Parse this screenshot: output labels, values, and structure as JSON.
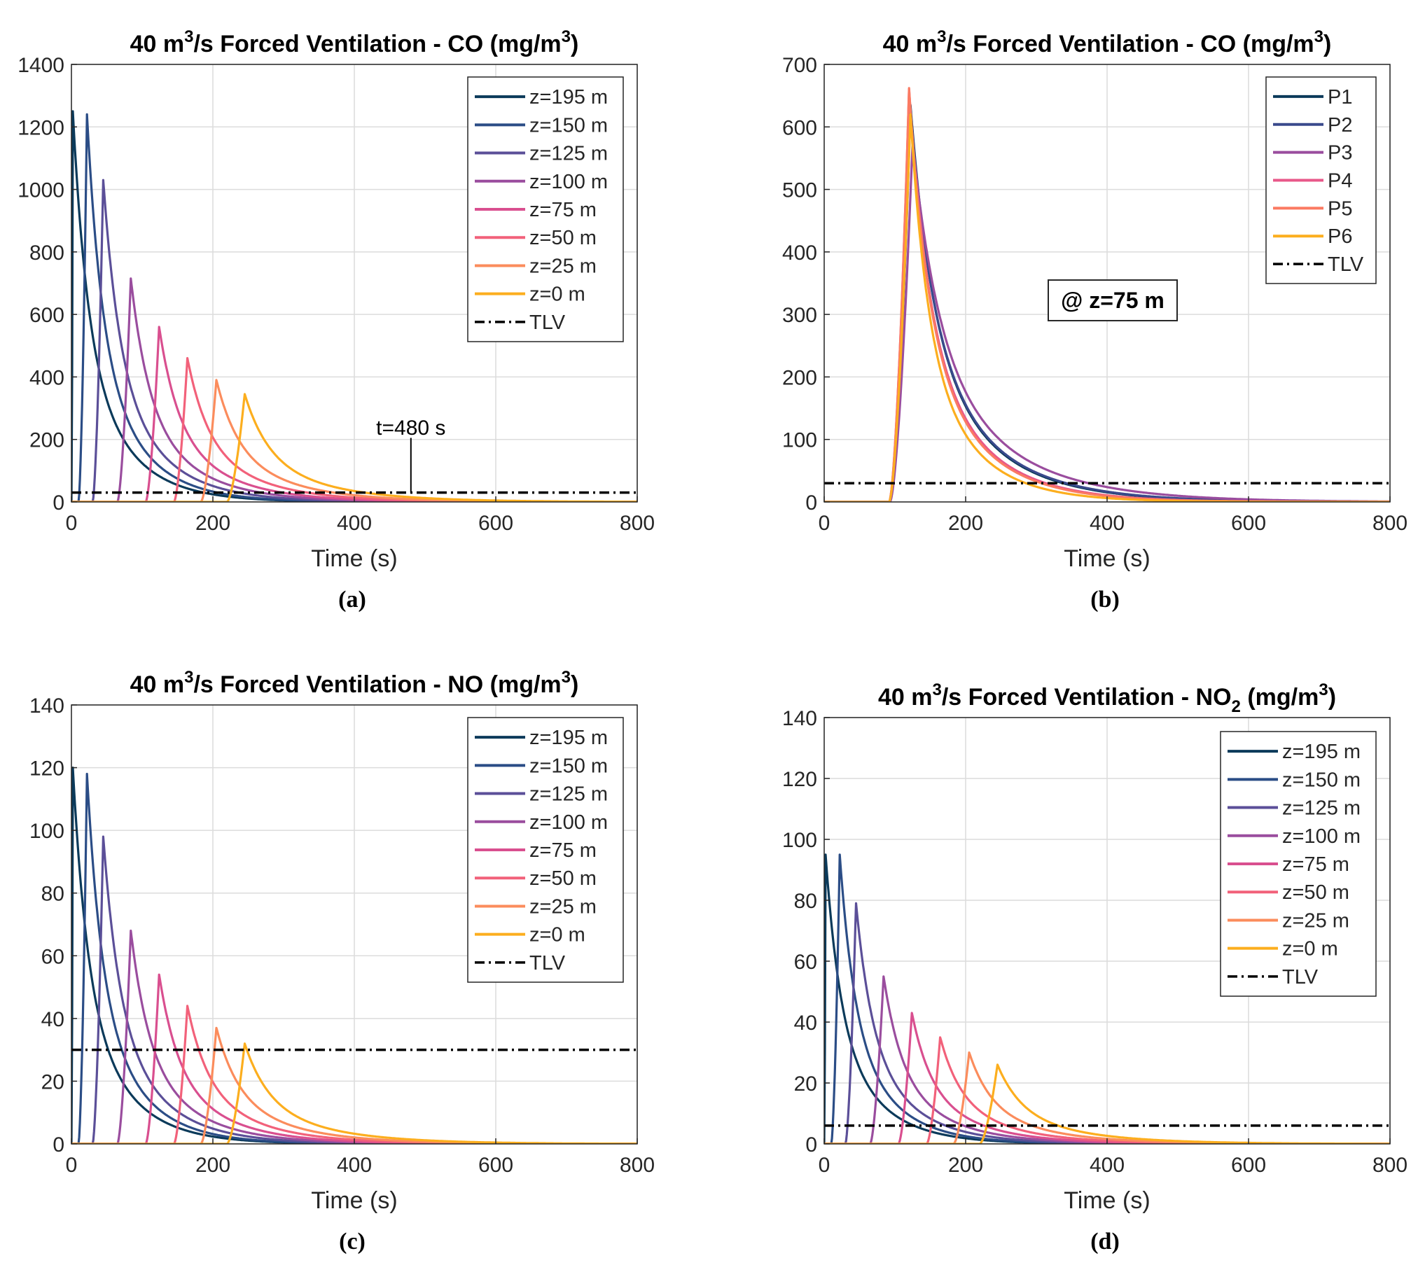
{
  "figure": {
    "panels": [
      "a",
      "b",
      "c",
      "d"
    ]
  },
  "colors": {
    "z195": "#0b3a5a",
    "z150": "#2b4d86",
    "z125": "#5b4f98",
    "z100": "#9a4d9e",
    "z75": "#d94f8f",
    "z50": "#f2617a",
    "z25": "#fb8c5c",
    "z0": "#fcae1e",
    "P1": "#0b3a5a",
    "P2": "#3a4a8c",
    "P3": "#9a4d9e",
    "P4": "#e8588a",
    "P5": "#fb7a62",
    "P6": "#fcae1e",
    "TLV": "#000000"
  },
  "chart_data": [
    {
      "id": "a",
      "type": "line",
      "caption": "(a)",
      "title": "40 m3/s Forced Ventilation - CO (mg/m3)",
      "title_parts": {
        "pre": "40 m",
        "sup1": "3",
        "mid": "/s Forced Ventilation - CO (mg/m",
        "sup2": "3",
        "post": ")"
      },
      "xlabel": "Time (s)",
      "ylabel": "",
      "xlim": [
        0,
        800
      ],
      "ylim": [
        0,
        1400
      ],
      "xticks": [
        0,
        200,
        400,
        600,
        800
      ],
      "yticks": [
        0,
        200,
        400,
        600,
        800,
        1000,
        1200,
        1400
      ],
      "grid": true,
      "legend_position": "top-right",
      "tlv": 30,
      "annotation": {
        "text": "t=480 s",
        "x": 480
      },
      "series": [
        {
          "name": "z=195 m",
          "key": "z195",
          "start": 0,
          "peak_t": 2,
          "peak": 1250,
          "tau": 45
        },
        {
          "name": "z=150 m",
          "key": "z150",
          "start": 10,
          "peak_t": 22,
          "peak": 1240,
          "tau": 45
        },
        {
          "name": "z=125 m",
          "key": "z125",
          "start": 30,
          "peak_t": 45,
          "peak": 1030,
          "tau": 50
        },
        {
          "name": "z=100 m",
          "key": "z100",
          "start": 65,
          "peak_t": 84,
          "peak": 715,
          "tau": 55
        },
        {
          "name": "z=75 m",
          "key": "z75",
          "start": 105,
          "peak_t": 124,
          "peak": 560,
          "tau": 58
        },
        {
          "name": "z=50 m",
          "key": "z50",
          "start": 145,
          "peak_t": 164,
          "peak": 460,
          "tau": 62
        },
        {
          "name": "z=25 m",
          "key": "z25",
          "start": 183,
          "peak_t": 205,
          "peak": 390,
          "tau": 66
        },
        {
          "name": "z=0 m",
          "key": "z0",
          "start": 220,
          "peak_t": 245,
          "peak": 345,
          "tau": 72
        },
        {
          "name": "TLV",
          "key": "TLV",
          "tlv": true
        }
      ]
    },
    {
      "id": "b",
      "type": "line",
      "caption": "(b)",
      "title": "40 m3/s Forced Ventilation - CO (mg/m3)",
      "title_parts": {
        "pre": "40 m",
        "sup1": "3",
        "mid": "/s Forced Ventilation - CO (mg/m",
        "sup2": "3",
        "post": ")"
      },
      "xlabel": "Time (s)",
      "ylabel": "",
      "xlim": [
        0,
        800
      ],
      "ylim": [
        0,
        700
      ],
      "xticks": [
        0,
        200,
        400,
        600,
        800
      ],
      "yticks": [
        0,
        100,
        200,
        300,
        400,
        500,
        600,
        700
      ],
      "grid": true,
      "legend_position": "top-right",
      "tlv": 30,
      "text_box": "@ z=75 m",
      "series": [
        {
          "name": "P1",
          "key": "P1",
          "start": 93,
          "peak_t": 122,
          "peak": 635,
          "tau": 68
        },
        {
          "name": "P2",
          "key": "P2",
          "start": 93,
          "peak_t": 122,
          "peak": 625,
          "tau": 70
        },
        {
          "name": "P3",
          "key": "P3",
          "start": 93,
          "peak_t": 125,
          "peak": 575,
          "tau": 82
        },
        {
          "name": "P4",
          "key": "P4",
          "start": 92,
          "peak_t": 120,
          "peak": 660,
          "tau": 60
        },
        {
          "name": "P5",
          "key": "P5",
          "start": 92,
          "peak_t": 120,
          "peak": 662,
          "tau": 58
        },
        {
          "name": "P6",
          "key": "P6",
          "start": 92,
          "peak_t": 122,
          "peak": 620,
          "tau": 52
        },
        {
          "name": "TLV",
          "key": "TLV",
          "tlv": true
        }
      ]
    },
    {
      "id": "c",
      "type": "line",
      "caption": "(c)",
      "title": "40 m3/s Forced Ventilation - NO (mg/m3)",
      "title_parts": {
        "pre": "40 m",
        "sup1": "3",
        "mid": "/s Forced Ventilation - NO (mg/m",
        "sup2": "3",
        "post": ")"
      },
      "xlabel": "Time (s)",
      "ylabel": "",
      "xlim": [
        0,
        800
      ],
      "ylim": [
        0,
        140
      ],
      "xticks": [
        0,
        200,
        400,
        600,
        800
      ],
      "yticks": [
        0,
        20,
        40,
        60,
        80,
        100,
        120,
        140
      ],
      "grid": true,
      "legend_position": "top-right",
      "tlv": 30,
      "series": [
        {
          "name": "z=195 m",
          "key": "z195",
          "start": 0,
          "peak_t": 2,
          "peak": 120,
          "tau": 45
        },
        {
          "name": "z=150 m",
          "key": "z150",
          "start": 10,
          "peak_t": 22,
          "peak": 118,
          "tau": 45
        },
        {
          "name": "z=125 m",
          "key": "z125",
          "start": 30,
          "peak_t": 45,
          "peak": 98,
          "tau": 50
        },
        {
          "name": "z=100 m",
          "key": "z100",
          "start": 65,
          "peak_t": 84,
          "peak": 68,
          "tau": 55
        },
        {
          "name": "z=75 m",
          "key": "z75",
          "start": 105,
          "peak_t": 124,
          "peak": 54,
          "tau": 58
        },
        {
          "name": "z=50 m",
          "key": "z50",
          "start": 145,
          "peak_t": 164,
          "peak": 44,
          "tau": 62
        },
        {
          "name": "z=25 m",
          "key": "z25",
          "start": 183,
          "peak_t": 205,
          "peak": 37,
          "tau": 66
        },
        {
          "name": "z=0 m",
          "key": "z0",
          "start": 220,
          "peak_t": 245,
          "peak": 32,
          "tau": 72
        },
        {
          "name": "TLV",
          "key": "TLV",
          "tlv": true
        }
      ]
    },
    {
      "id": "d",
      "type": "line",
      "caption": "(d)",
      "title": "40 m3/s Forced Ventilation - NO2 (mg/m3)",
      "title_parts": {
        "pre": "40 m",
        "sup1": "3",
        "mid": "/s Forced Ventilation - NO",
        "sub": "2",
        "mid2": " (mg/m",
        "sup2": "3",
        "post": ")"
      },
      "xlabel": "Time (s)",
      "ylabel": "",
      "xlim": [
        0,
        800
      ],
      "ylim": [
        0,
        140
      ],
      "xticks": [
        0,
        200,
        400,
        600,
        800
      ],
      "yticks": [
        0,
        20,
        40,
        60,
        80,
        100,
        120,
        140
      ],
      "grid": true,
      "legend_position": "top-right",
      "tlv": 6,
      "series": [
        {
          "name": "z=195 m",
          "key": "z195",
          "start": 0,
          "peak_t": 2,
          "peak": 95,
          "tau": 45
        },
        {
          "name": "z=150 m",
          "key": "z150",
          "start": 10,
          "peak_t": 22,
          "peak": 95,
          "tau": 45
        },
        {
          "name": "z=125 m",
          "key": "z125",
          "start": 30,
          "peak_t": 45,
          "peak": 79,
          "tau": 50
        },
        {
          "name": "z=100 m",
          "key": "z100",
          "start": 65,
          "peak_t": 84,
          "peak": 55,
          "tau": 55
        },
        {
          "name": "z=75 m",
          "key": "z75",
          "start": 105,
          "peak_t": 124,
          "peak": 43,
          "tau": 58
        },
        {
          "name": "z=50 m",
          "key": "z50",
          "start": 145,
          "peak_t": 164,
          "peak": 35,
          "tau": 62
        },
        {
          "name": "z=25 m",
          "key": "z25",
          "start": 183,
          "peak_t": 205,
          "peak": 30,
          "tau": 66
        },
        {
          "name": "z=0 m",
          "key": "z0",
          "start": 220,
          "peak_t": 245,
          "peak": 26,
          "tau": 72
        },
        {
          "name": "TLV",
          "key": "TLV",
          "tlv": true
        }
      ]
    }
  ]
}
